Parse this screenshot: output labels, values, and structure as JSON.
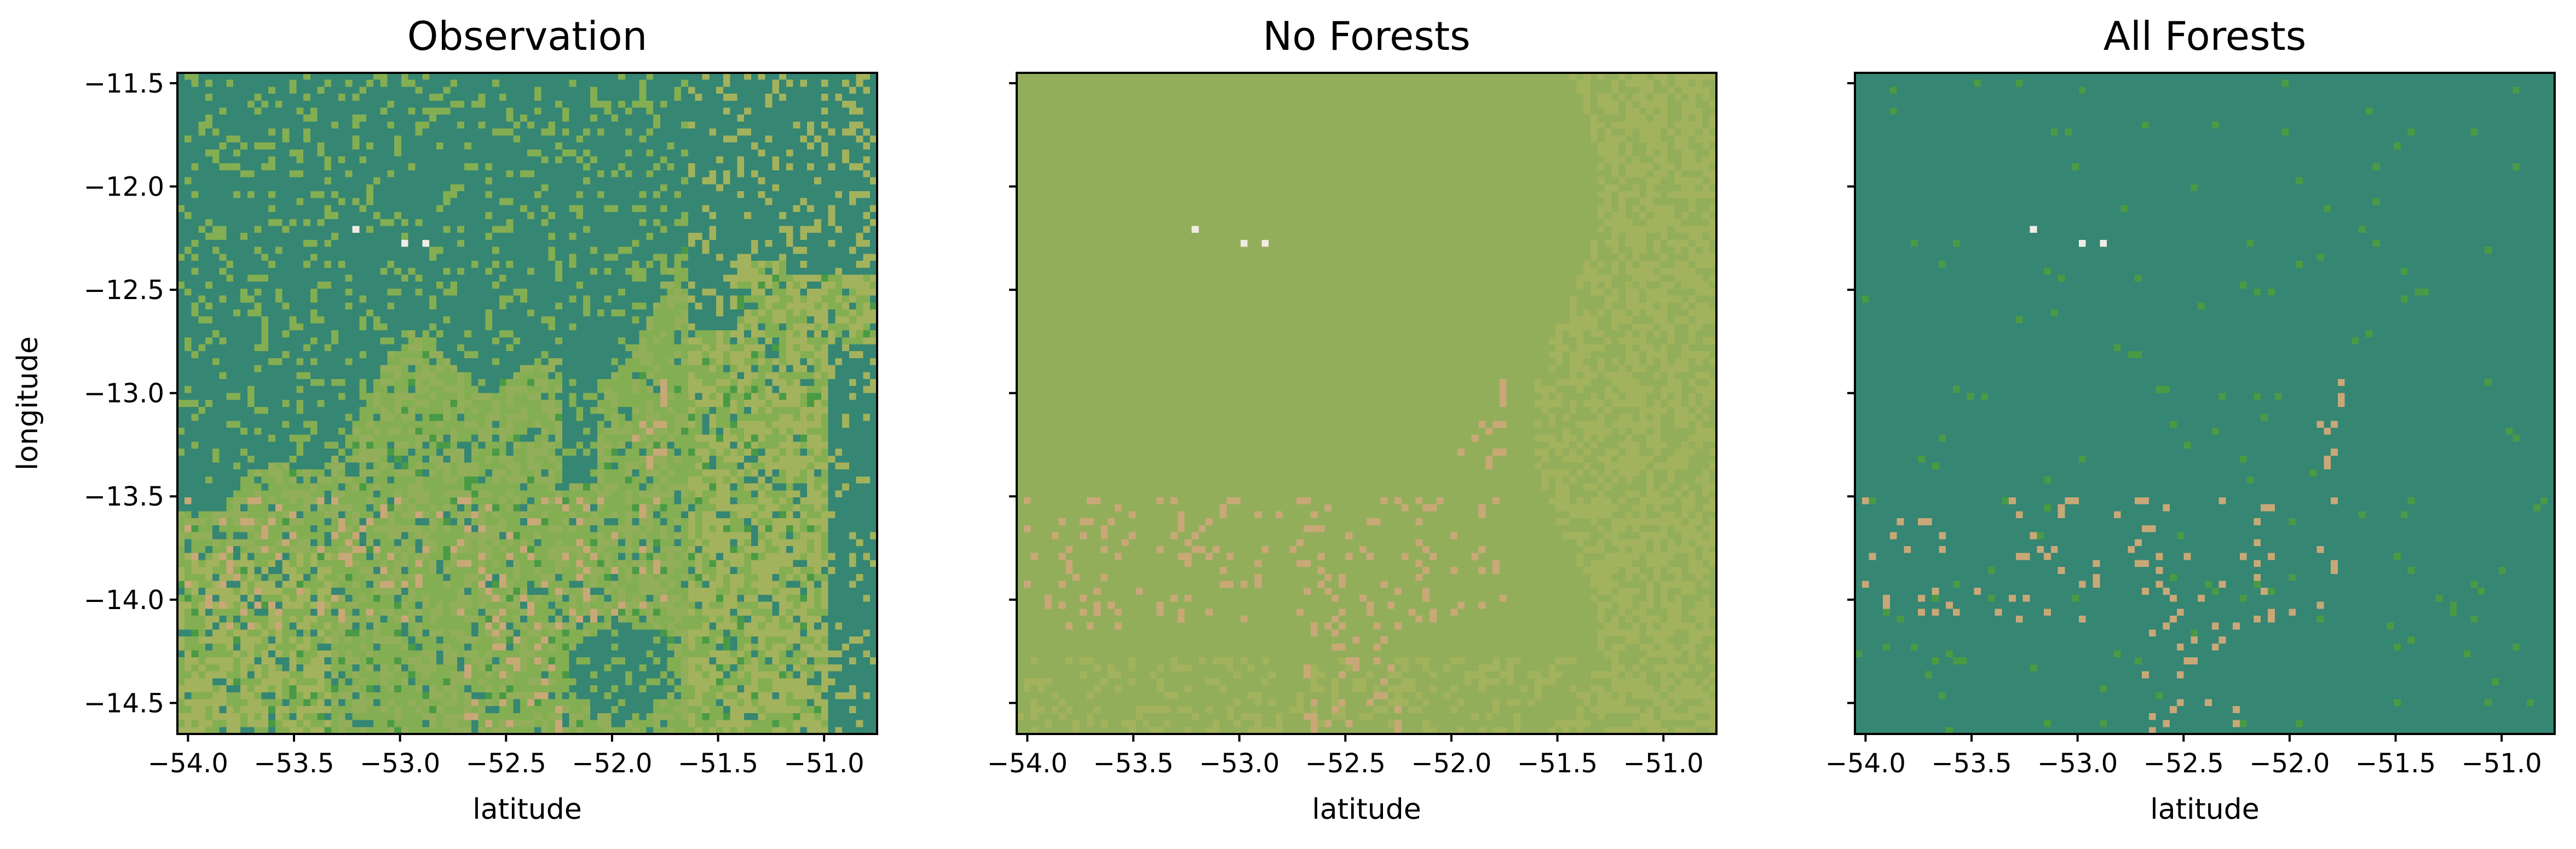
{
  "palette": {
    "forest": "#358673",
    "savanna": "#93ae5a",
    "savanna_light": "#a3b25c",
    "grassland": "#84ae52",
    "bright_green": "#4a9a45",
    "soil": "#c9a878",
    "white": "#f0ece4"
  },
  "chart_data": [
    {
      "type": "heatmap",
      "title": "Observation",
      "xlabel": "latitude",
      "ylabel": "longitude",
      "xlim": [
        -54.05,
        -50.75
      ],
      "ylim": [
        -14.65,
        -11.45
      ],
      "xticks": [
        -54.0,
        -53.5,
        -53.0,
        -52.5,
        -52.0,
        -51.5,
        -51.0
      ],
      "xtick_labels": [
        "−54.0",
        "−53.5",
        "−53.0",
        "−52.5",
        "−52.0",
        "−51.5",
        "−51.0"
      ],
      "yticks": [
        -11.5,
        -12.0,
        -12.5,
        -13.0,
        -13.5,
        -14.0,
        -14.5
      ],
      "ytick_labels": [
        "−11.5",
        "−12.0",
        "−12.5",
        "−13.0",
        "−13.5",
        "−14.0",
        "−14.5"
      ],
      "show_ytick_labels": true,
      "scenario": "observation"
    },
    {
      "type": "heatmap",
      "title": "No Forests",
      "xlabel": "latitude",
      "ylabel": "",
      "xlim": [
        -54.05,
        -50.75
      ],
      "ylim": [
        -14.65,
        -11.45
      ],
      "xticks": [
        -54.0,
        -53.5,
        -53.0,
        -52.5,
        -52.0,
        -51.5,
        -51.0
      ],
      "xtick_labels": [
        "−54.0",
        "−53.5",
        "−53.0",
        "−52.5",
        "−52.0",
        "−51.5",
        "−51.0"
      ],
      "yticks": [
        -11.5,
        -12.0,
        -12.5,
        -13.0,
        -13.5,
        -14.0,
        -14.5
      ],
      "ytick_labels": [],
      "show_ytick_labels": false,
      "scenario": "no_forests"
    },
    {
      "type": "heatmap",
      "title": "All Forests",
      "xlabel": "latitude",
      "ylabel": "",
      "xlim": [
        -54.05,
        -50.75
      ],
      "ylim": [
        -14.65,
        -11.45
      ],
      "xticks": [
        -54.0,
        -53.5,
        -53.0,
        -52.5,
        -52.0,
        -51.5,
        -51.0
      ],
      "xtick_labels": [
        "−54.0",
        "−53.5",
        "−53.0",
        "−52.5",
        "−52.0",
        "−51.5",
        "−51.0"
      ],
      "yticks": [
        -11.5,
        -12.0,
        -12.5,
        -13.0,
        -13.5,
        -14.0,
        -14.5
      ],
      "ytick_labels": [],
      "show_ytick_labels": false,
      "scenario": "all_forests"
    }
  ]
}
